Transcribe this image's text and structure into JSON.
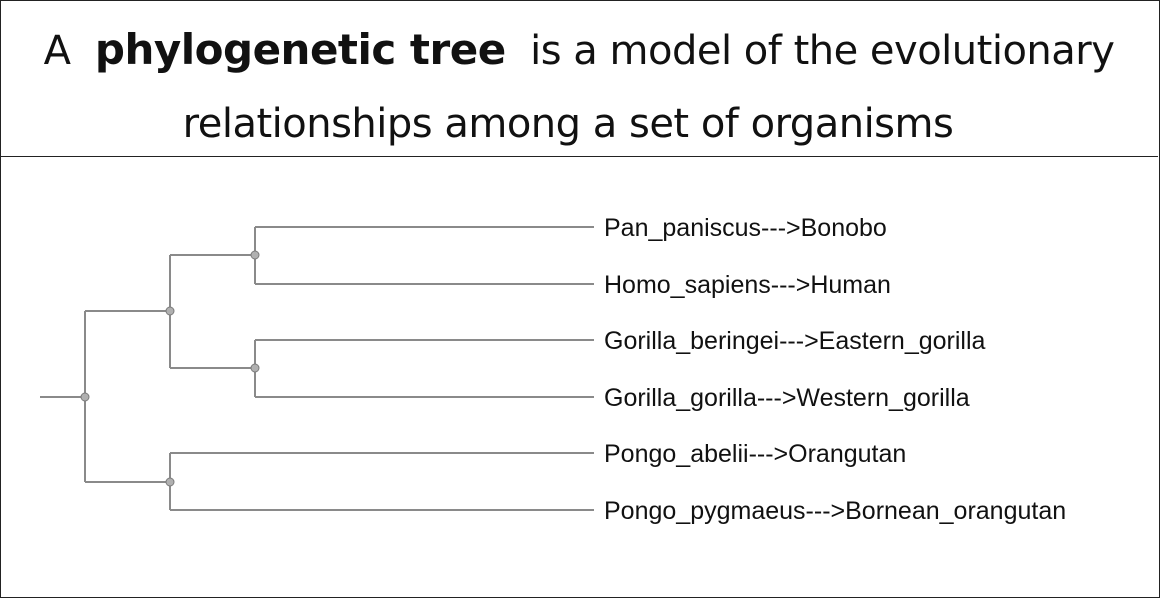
{
  "header": {
    "prefix": "A",
    "term": "phylogenetic tree",
    "suffix": "is a model of the evolutionary",
    "line2": "relationships among a set of organisms"
  },
  "tree": {
    "leaves": [
      "Pan_paniscus--->Bonobo",
      "Homo_sapiens--->Human",
      "Gorilla_beringei--->Eastern_gorilla",
      "Gorilla_gorilla--->Western_gorilla",
      "Pongo_abelii--->Orangutan",
      "Pongo_pygmaeus--->Bornean_orangutan"
    ],
    "clades": [
      {
        "name": "root",
        "children": [
          "great-apes-ingroup",
          "pongo-clade"
        ]
      },
      {
        "name": "great-apes-ingroup",
        "children": [
          "pan-homo-clade",
          "gorilla-clade"
        ]
      },
      {
        "name": "pan-homo-clade",
        "children": [
          0,
          1
        ]
      },
      {
        "name": "gorilla-clade",
        "children": [
          2,
          3
        ]
      },
      {
        "name": "pongo-clade",
        "children": [
          4,
          5
        ]
      }
    ],
    "colors": {
      "branch": "#8a8a8a",
      "node": "#b0b0b0",
      "text": "#111111"
    }
  }
}
